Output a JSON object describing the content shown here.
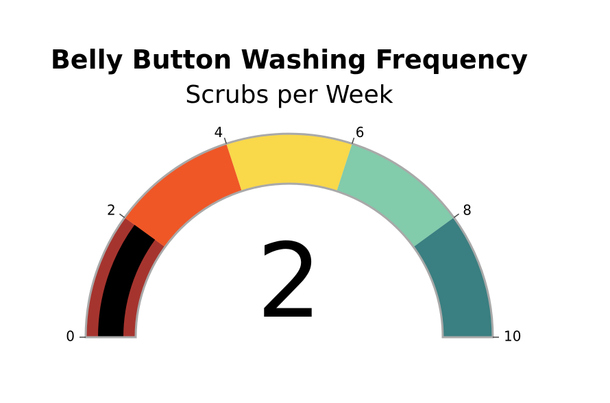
{
  "chart_data": {
    "type": "gauge",
    "title": "Belly Button Washing Frequency",
    "subtitle": "Scrubs per Week",
    "value": 2,
    "value_label": "2",
    "range": [
      0,
      10
    ],
    "ticks": [
      {
        "value": 0,
        "label": "0"
      },
      {
        "value": 2,
        "label": "2"
      },
      {
        "value": 4,
        "label": "4"
      },
      {
        "value": 6,
        "label": "6"
      },
      {
        "value": 8,
        "label": "8"
      },
      {
        "value": 10,
        "label": "10"
      }
    ],
    "steps": [
      {
        "range": [
          0,
          2
        ],
        "color": "#a6342e"
      },
      {
        "range": [
          2,
          4
        ],
        "color": "#ef5727"
      },
      {
        "range": [
          4,
          6
        ],
        "color": "#f9d84a"
      },
      {
        "range": [
          6,
          8
        ],
        "color": "#82cbab"
      },
      {
        "range": [
          8,
          10
        ],
        "color": "#3a7f81"
      }
    ],
    "bar_color": "#000000",
    "border_color": "#a9a9a9"
  }
}
